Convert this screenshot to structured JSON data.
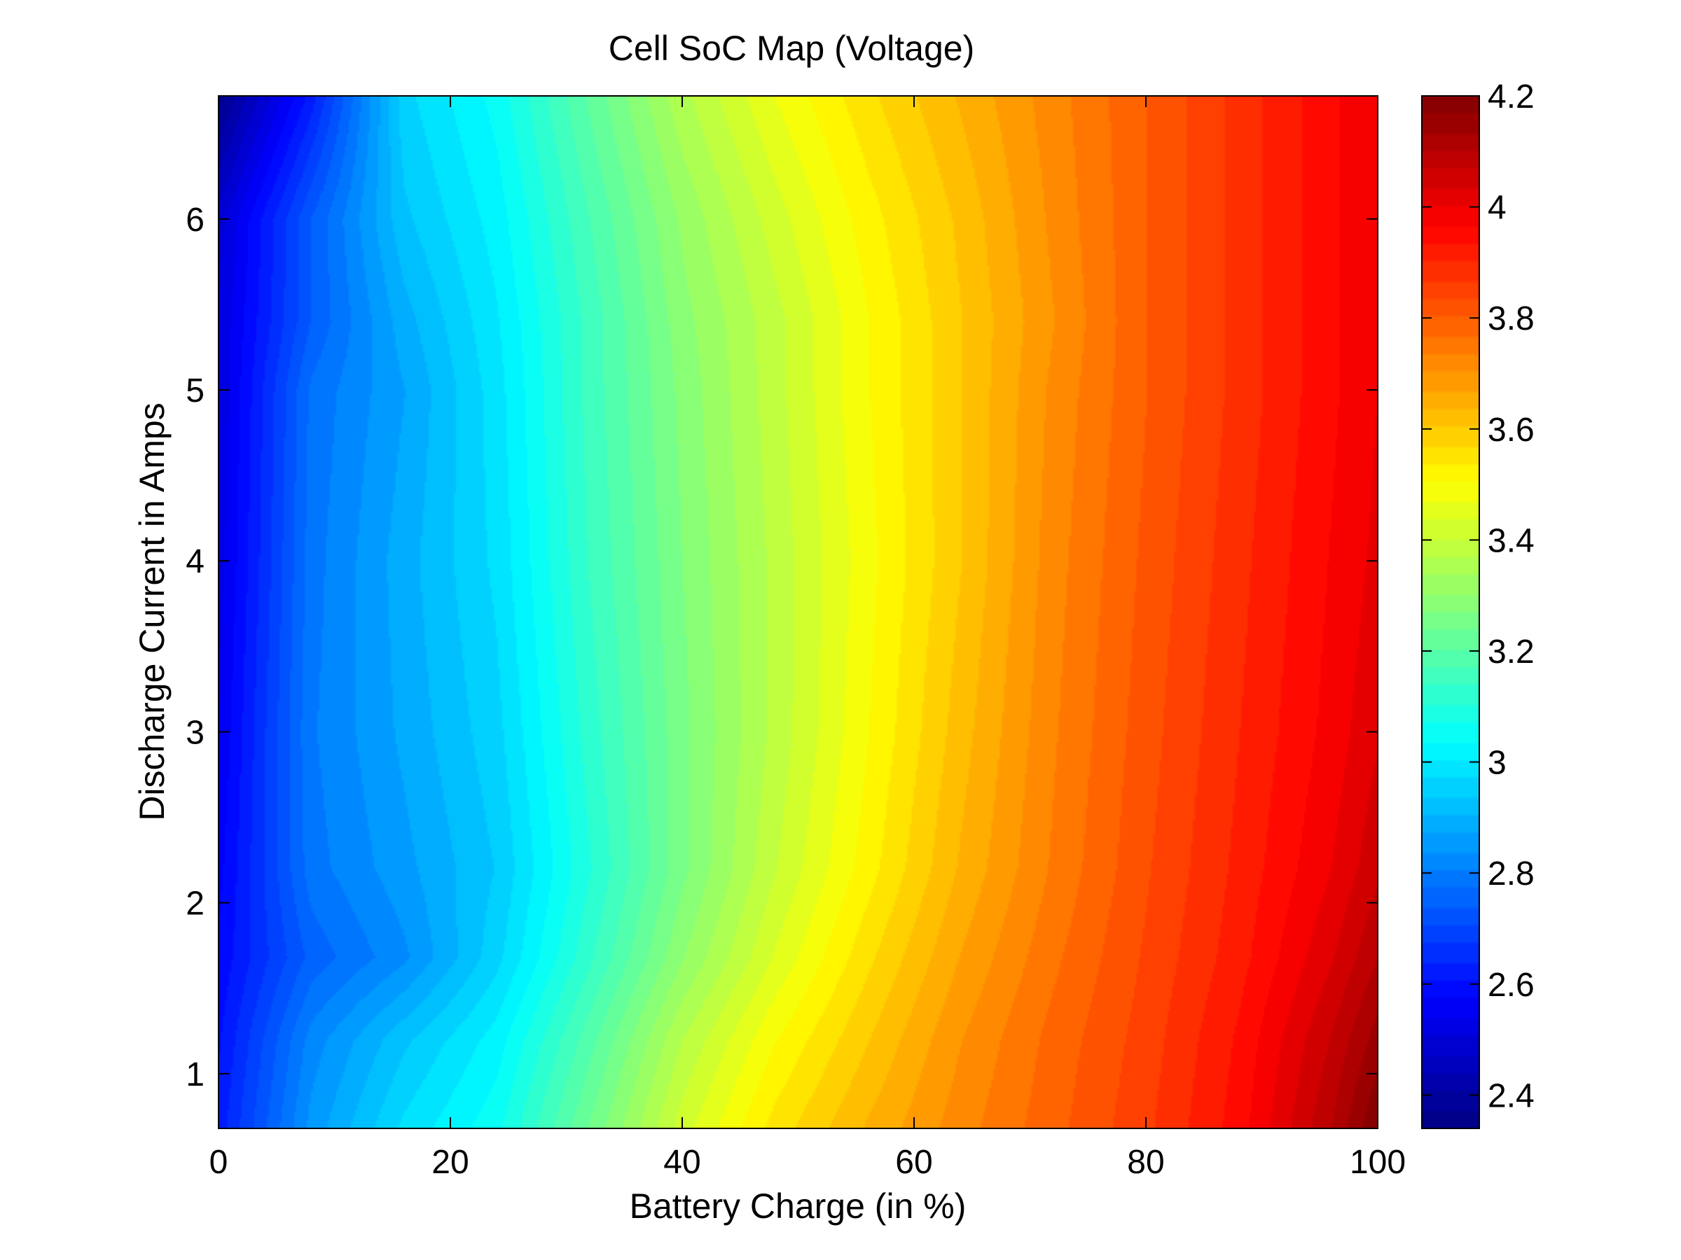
{
  "chart_data": {
    "type": "heatmap",
    "subtype": "filled-contour",
    "title": "Cell SoC Map (Voltage)",
    "xlabel": "Battery Charge (in %)",
    "ylabel": "Discharge Current in Amps",
    "xlim": [
      0,
      100
    ],
    "ylim": [
      0.68,
      6.72
    ],
    "xticks": [
      0,
      20,
      40,
      60,
      80,
      100
    ],
    "yticks": [
      1,
      2,
      3,
      4,
      5,
      6
    ],
    "colorbar": {
      "label": "",
      "range": [
        2.34,
        4.2
      ],
      "ticks": [
        2.4,
        2.6,
        2.8,
        3,
        3.2,
        3.4,
        3.6,
        3.8,
        4,
        4.2
      ],
      "colormap": "jet",
      "levels": 56
    },
    "x": [
      0,
      8,
      16,
      24,
      32,
      40,
      48,
      56,
      64,
      72,
      80,
      88,
      96,
      100
    ],
    "y": [
      0.68,
      1.2,
      1.68,
      2.2,
      3.0,
      4.0,
      5.0,
      5.4,
      6.0,
      6.72
    ],
    "z": [
      [
        2.62,
        2.85,
        2.98,
        3.06,
        3.24,
        3.42,
        3.55,
        3.64,
        3.72,
        3.79,
        3.86,
        3.95,
        4.1,
        4.2
      ],
      [
        2.6,
        2.82,
        2.93,
        3.02,
        3.19,
        3.37,
        3.5,
        3.6,
        3.7,
        3.78,
        3.85,
        3.94,
        4.07,
        4.15
      ],
      [
        2.58,
        2.75,
        2.83,
        2.96,
        3.13,
        3.3,
        3.44,
        3.56,
        3.67,
        3.76,
        3.84,
        3.92,
        4.03,
        4.1
      ],
      [
        2.56,
        2.79,
        2.86,
        2.94,
        3.1,
        3.26,
        3.4,
        3.52,
        3.64,
        3.74,
        3.83,
        3.91,
        4.0,
        4.06
      ],
      [
        2.54,
        2.8,
        2.88,
        2.96,
        3.12,
        3.26,
        3.38,
        3.5,
        3.62,
        3.73,
        3.82,
        3.9,
        3.98,
        4.03
      ],
      [
        2.52,
        2.79,
        2.89,
        2.98,
        3.14,
        3.27,
        3.38,
        3.49,
        3.6,
        3.72,
        3.81,
        3.89,
        3.97,
        4.01
      ],
      [
        2.51,
        2.78,
        2.87,
        2.99,
        3.15,
        3.28,
        3.39,
        3.5,
        3.6,
        3.71,
        3.8,
        3.88,
        3.96,
        4.0
      ],
      [
        2.51,
        2.74,
        2.89,
        3.0,
        3.15,
        3.29,
        3.39,
        3.5,
        3.6,
        3.7,
        3.8,
        3.88,
        3.96,
        4.0
      ],
      [
        2.49,
        2.74,
        2.93,
        3.02,
        3.17,
        3.31,
        3.42,
        3.52,
        3.61,
        3.71,
        3.8,
        3.88,
        3.96,
        4.0
      ],
      [
        2.36,
        2.62,
        2.96,
        3.05,
        3.21,
        3.36,
        3.47,
        3.56,
        3.64,
        3.72,
        3.8,
        3.88,
        3.96,
        4.0
      ]
    ]
  }
}
